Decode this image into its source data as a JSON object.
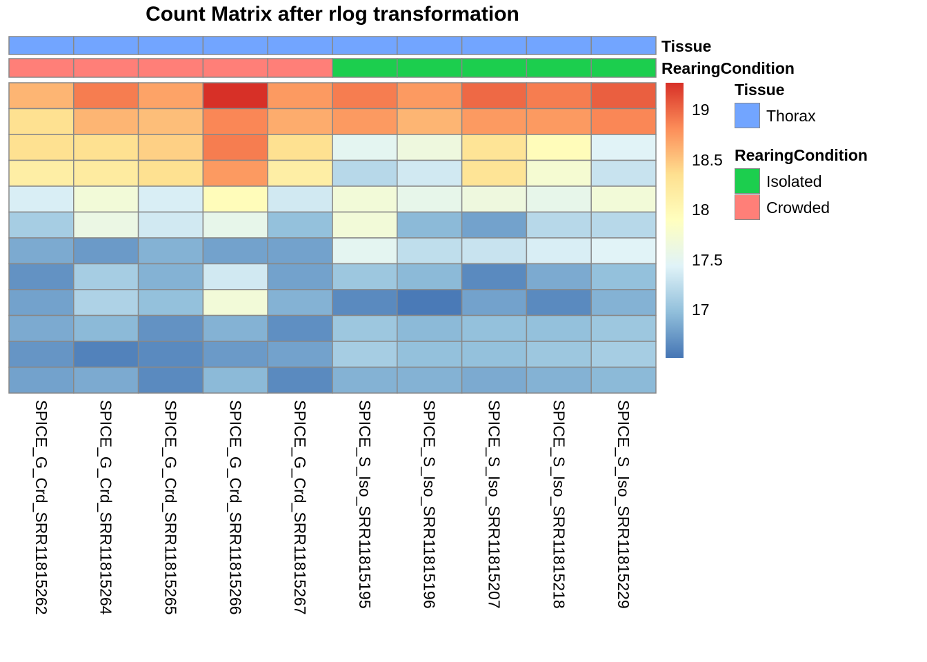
{
  "chart_data": {
    "type": "heatmap",
    "title": "Count Matrix after rlog transformation",
    "columns": [
      "SPICE_G_Crd_SRR11815262",
      "SPICE_G_Crd_SRR11815264",
      "SPICE_G_Crd_SRR11815265",
      "SPICE_G_Crd_SRR11815266",
      "SPICE_G_Crd_SRR11815267",
      "SPICE_S_Iso_SRR11815195",
      "SPICE_S_Iso_SRR11815196",
      "SPICE_S_Iso_SRR11815207",
      "SPICE_S_Iso_SRR11815218",
      "SPICE_S_Iso_SRR11815229"
    ],
    "values": [
      [
        18.6,
        18.9,
        18.7,
        19.28,
        18.75,
        18.9,
        18.75,
        19.0,
        18.9,
        19.05
      ],
      [
        18.35,
        18.6,
        18.55,
        18.85,
        18.65,
        18.75,
        18.6,
        18.75,
        18.75,
        18.85
      ],
      [
        18.35,
        18.35,
        18.45,
        18.9,
        18.35,
        17.5,
        17.65,
        18.3,
        17.95,
        17.45
      ],
      [
        18.15,
        18.2,
        18.35,
        18.75,
        18.15,
        17.2,
        17.35,
        18.3,
        17.75,
        17.3
      ],
      [
        17.4,
        17.7,
        17.4,
        17.95,
        17.35,
        17.7,
        17.55,
        17.65,
        17.55,
        17.7
      ],
      [
        17.1,
        17.6,
        17.35,
        17.55,
        17.0,
        17.7,
        16.95,
        16.8,
        17.2,
        17.2
      ],
      [
        16.85,
        16.75,
        16.9,
        16.8,
        16.8,
        17.5,
        17.25,
        17.3,
        17.4,
        17.45
      ],
      [
        16.7,
        17.1,
        16.9,
        17.35,
        16.8,
        17.05,
        16.95,
        16.65,
        16.85,
        17.0
      ],
      [
        16.8,
        17.15,
        17.0,
        17.7,
        16.9,
        16.65,
        16.55,
        16.8,
        16.65,
        16.9
      ],
      [
        16.85,
        16.95,
        16.7,
        16.9,
        16.68,
        17.05,
        16.95,
        17.0,
        17.0,
        17.05
      ],
      [
        16.72,
        16.6,
        16.65,
        16.75,
        16.8,
        17.1,
        17.0,
        17.0,
        17.05,
        17.1
      ],
      [
        16.8,
        16.85,
        16.65,
        16.95,
        16.65,
        16.9,
        16.9,
        16.85,
        16.9,
        16.95
      ]
    ],
    "color_range": [
      16.52,
      19.28
    ],
    "palette": [
      "#4575B4",
      "#91BFDB",
      "#E0F3F8",
      "#FFFFBF",
      "#FEE090",
      "#FC8D59",
      "#D73027"
    ],
    "colorbar_ticks": [
      "19",
      "18.5",
      "18",
      "17.5",
      "17"
    ],
    "colorbar_tick_values": [
      19,
      18.5,
      18,
      17.5,
      17
    ],
    "annotations": [
      {
        "name": "Tissue",
        "values": [
          "Thorax",
          "Thorax",
          "Thorax",
          "Thorax",
          "Thorax",
          "Thorax",
          "Thorax",
          "Thorax",
          "Thorax",
          "Thorax"
        ]
      },
      {
        "name": "RearingCondition",
        "values": [
          "Crowded",
          "Crowded",
          "Crowded",
          "Crowded",
          "Crowded",
          "Isolated",
          "Isolated",
          "Isolated",
          "Isolated",
          "Isolated"
        ]
      }
    ],
    "legend": {
      "tissue_title": "Tissue",
      "tissue_items": [
        {
          "label": "Thorax",
          "color": "#72A5FF"
        }
      ],
      "rearing_title": "RearingCondition",
      "rearing_items": [
        {
          "label": "Isolated",
          "color": "#1CCE4E"
        },
        {
          "label": "Crowded",
          "color": "#FF7F78"
        }
      ]
    },
    "border_color": "#888888",
    "legend_placement": "right"
  }
}
